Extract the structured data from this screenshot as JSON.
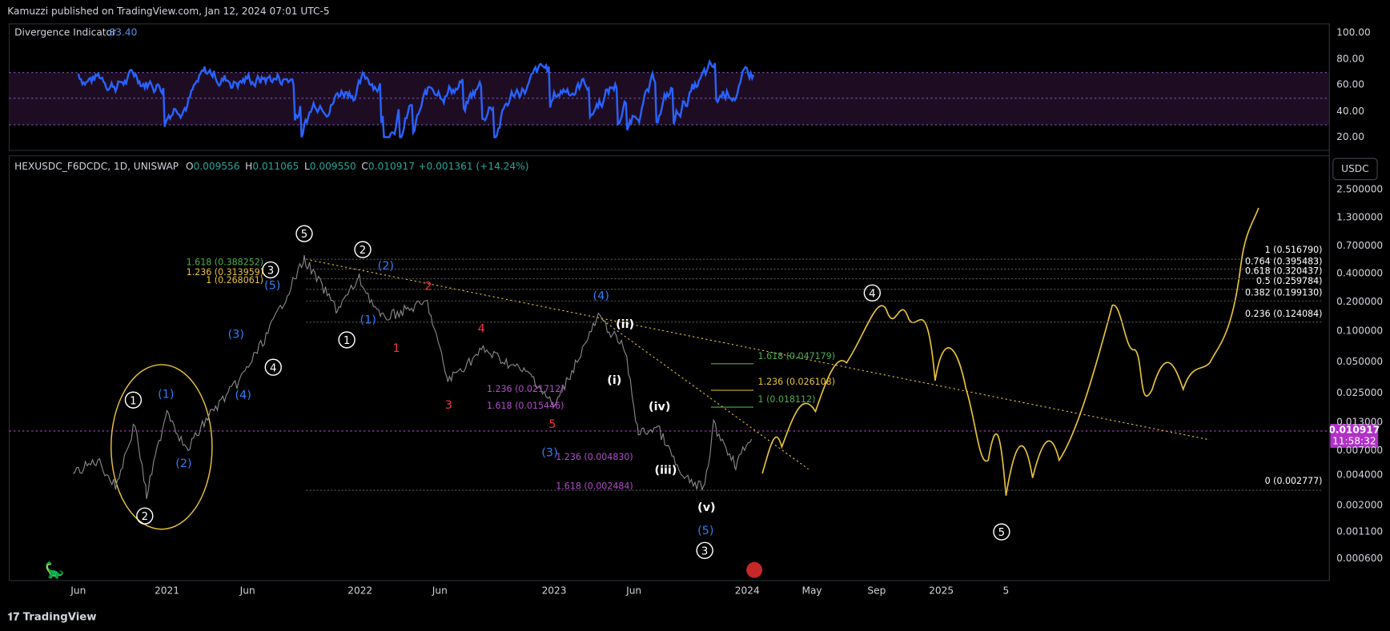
{
  "header": {
    "published": "Kamuzzi published on TradingView.com, Jan 12, 2024 07:01 UTC-5"
  },
  "indicator": {
    "name": "Divergence Indicator",
    "value": "83.40",
    "axis_labels": [
      "100.00",
      "80.00",
      "60.00",
      "40.00",
      "20.00"
    ]
  },
  "legend": {
    "symbol": "HEXUSDC_F6DCDC, 1D, UNISWAP",
    "ohlc": [
      {
        "label": "O",
        "value": "0.009556"
      },
      {
        "label": "H",
        "value": "0.011065"
      },
      {
        "label": "L",
        "value": "0.009550"
      },
      {
        "label": "C",
        "value": "0.010917"
      }
    ],
    "change": "+0.001361 (+14.24%)"
  },
  "currency_button": "USDC",
  "price_axis": [
    "2.500000",
    "1.300000",
    "0.700000",
    "0.400000",
    "0.200000",
    "0.100000",
    "0.050000",
    "0.025000",
    "0.013000",
    "0.007000",
    "0.004000",
    "0.002000",
    "0.001100",
    "0.000600"
  ],
  "last_price": {
    "price": "0.010917",
    "countdown": "11:58:32"
  },
  "time_axis": [
    "Jun",
    "2021",
    "Jun",
    "2022",
    "Jun",
    "2023",
    "Jun",
    "2024",
    "May",
    "Sep",
    "2025",
    "5"
  ],
  "wave_labels": [
    "1",
    "2",
    "3",
    "4",
    "5",
    "1",
    "2",
    "4",
    "5",
    "3",
    "(1)",
    "(2)",
    "(4)",
    "(3)",
    "(5)",
    "(1)",
    "(2)",
    "(4)",
    "(3)",
    "(5)",
    "2",
    "4",
    "1",
    "3",
    "5",
    "(ii)",
    "(i)",
    "(iv)",
    "(iii)",
    "(v)"
  ],
  "fib_labels": [
    "1.618 (0.388252)",
    "1.236 (0.313959)",
    "1 (0.268061)",
    "1.236 (0.021712)",
    "1.618 (0.015446)",
    "1.236 (0.004830)",
    "1.618 (0.002484)",
    "1.618 (0.047179)",
    "1.236 (0.026108)",
    "1 (0.018112)",
    "1 (0.516790)",
    "0.764 (0.395483)",
    "0.618 (0.320437)",
    "0.5 (0.259784)",
    "0.382 (0.199130)",
    "0.236 (0.124084)",
    "0 (0.002777)"
  ],
  "footer": {
    "brand": "TradingView"
  }
}
